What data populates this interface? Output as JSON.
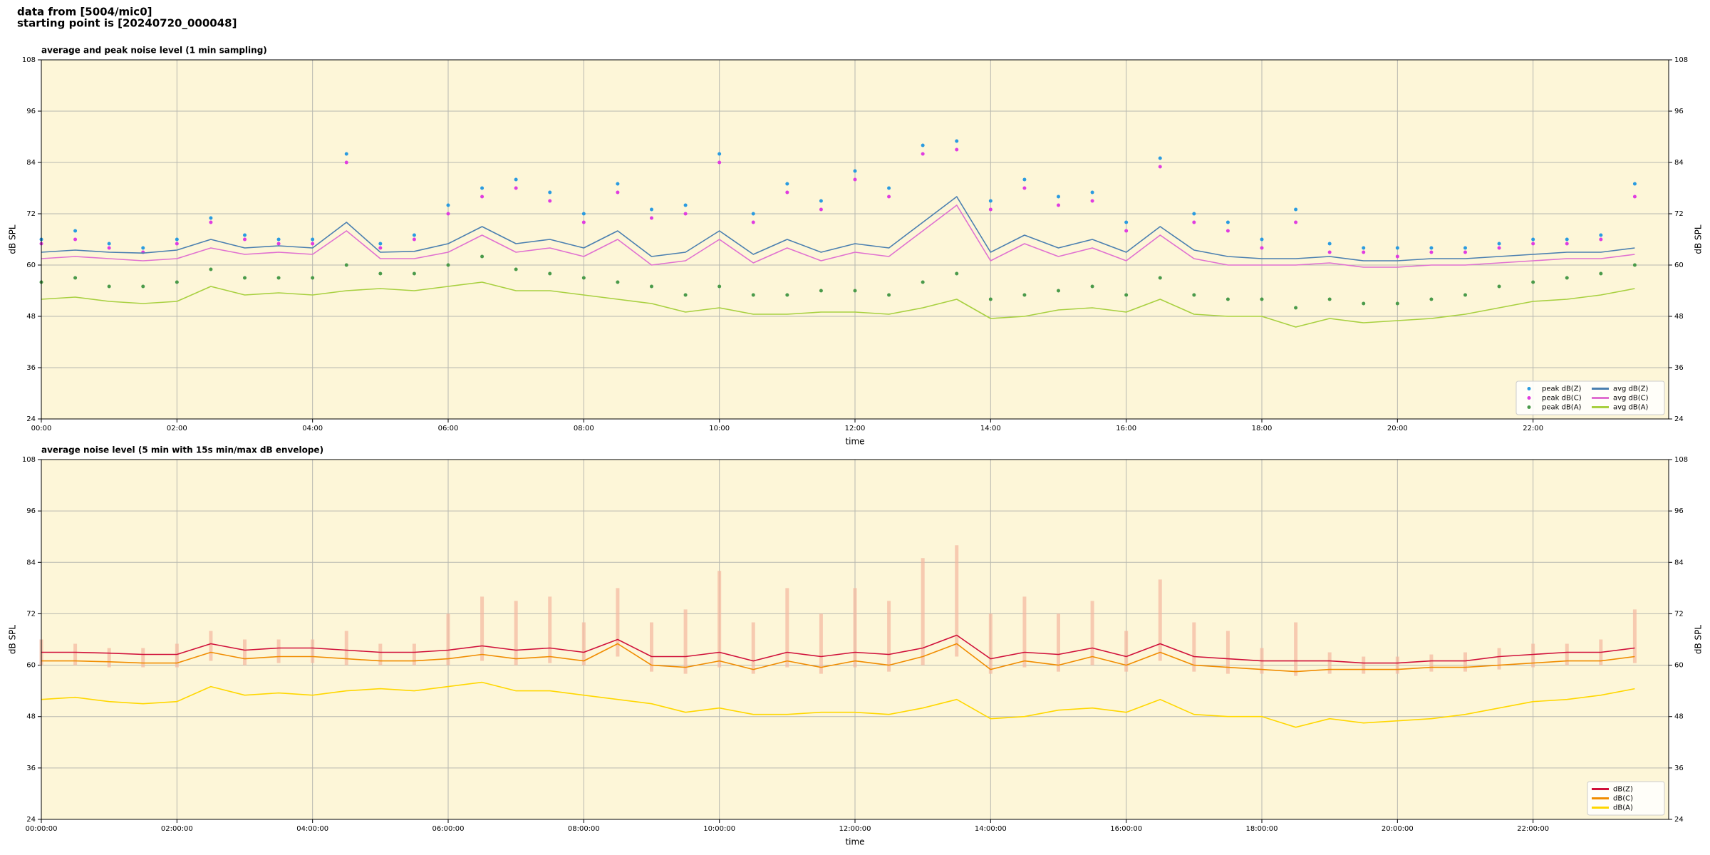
{
  "header": {
    "lines": [
      "data from [5004/mic0]",
      "starting point is [20240720_000048]"
    ]
  },
  "chart_data": [
    {
      "type": "line",
      "title": "average and peak noise level (1 min sampling)",
      "xlabel": "time",
      "ylabel": "dB SPL",
      "background": "#fdf6d8",
      "grid": true,
      "legend": "lower right",
      "legend_columns": 2,
      "xlim": [
        0,
        24
      ],
      "xticks": [
        {
          "value": 0,
          "label": "00:00"
        },
        {
          "value": 2,
          "label": "02:00"
        },
        {
          "value": 4,
          "label": "04:00"
        },
        {
          "value": 6,
          "label": "06:00"
        },
        {
          "value": 8,
          "label": "08:00"
        },
        {
          "value": 10,
          "label": "10:00"
        },
        {
          "value": 12,
          "label": "12:00"
        },
        {
          "value": 14,
          "label": "14:00"
        },
        {
          "value": 16,
          "label": "16:00"
        },
        {
          "value": 18,
          "label": "18:00"
        },
        {
          "value": 20,
          "label": "20:00"
        },
        {
          "value": 22,
          "label": "22:00"
        }
      ],
      "ylim": [
        24,
        108
      ],
      "yticks": [
        24,
        36,
        48,
        60,
        72,
        84,
        96,
        108
      ],
      "x": [
        0,
        0.5,
        1,
        1.5,
        2,
        2.5,
        3,
        3.5,
        4,
        4.5,
        5,
        5.5,
        6,
        6.5,
        7,
        7.5,
        8,
        8.5,
        9,
        9.5,
        10,
        10.5,
        11,
        11.5,
        12,
        12.5,
        13,
        13.5,
        14,
        14.5,
        15,
        15.5,
        16,
        16.5,
        17,
        17.5,
        18,
        18.5,
        19,
        19.5,
        20,
        20.5,
        21,
        21.5,
        22,
        22.5,
        23,
        23.5
      ],
      "series": [
        {
          "name": "peak dB(Z)",
          "color": "#2a9be0",
          "marker": "dot",
          "values": [
            66,
            68,
            65,
            64,
            66,
            71,
            67,
            66,
            66,
            86,
            65,
            67,
            74,
            78,
            80,
            77,
            72,
            79,
            73,
            74,
            86,
            72,
            79,
            75,
            82,
            78,
            88,
            89,
            75,
            80,
            76,
            77,
            70,
            85,
            72,
            70,
            66,
            73,
            65,
            64,
            64,
            64,
            64,
            65,
            66,
            66,
            67,
            79
          ]
        },
        {
          "name": "peak dB(C)",
          "color": "#e03ce0",
          "marker": "dot",
          "values": [
            65,
            66,
            64,
            63,
            65,
            70,
            66,
            65,
            65,
            84,
            64,
            66,
            72,
            76,
            78,
            75,
            70,
            77,
            71,
            72,
            84,
            70,
            77,
            73,
            80,
            76,
            86,
            87,
            73,
            78,
            74,
            75,
            68,
            83,
            70,
            68,
            64,
            70,
            63,
            63,
            62,
            63,
            63,
            64,
            65,
            65,
            66,
            76
          ]
        },
        {
          "name": "peak dB(A)",
          "color": "#4a9a4a",
          "marker": "dot",
          "values": [
            56,
            57,
            55,
            55,
            56,
            59,
            57,
            57,
            57,
            60,
            58,
            58,
            60,
            62,
            59,
            58,
            57,
            56,
            55,
            53,
            55,
            53,
            53,
            54,
            54,
            53,
            56,
            58,
            52,
            53,
            54,
            55,
            53,
            57,
            53,
            52,
            52,
            50,
            52,
            51,
            51,
            52,
            53,
            55,
            56,
            57,
            58,
            60
          ]
        },
        {
          "name": "avg dB(Z)",
          "color": "#4a7fb0",
          "values": [
            63,
            63.5,
            63,
            62.8,
            63.5,
            66,
            64,
            64.5,
            64,
            70,
            63,
            63.2,
            65,
            69,
            65,
            66,
            64,
            68,
            62,
            63,
            68,
            62.5,
            66,
            63,
            65,
            64,
            70,
            76,
            63,
            67,
            64,
            66,
            63,
            69,
            63.5,
            62,
            61.5,
            61.5,
            62,
            61,
            61,
            61.5,
            61.5,
            62,
            62.5,
            63,
            63,
            64
          ]
        },
        {
          "name": "avg dB(C)",
          "color": "#e070d0",
          "values": [
            61.5,
            62,
            61.5,
            61,
            61.5,
            64,
            62.5,
            63,
            62.5,
            68,
            61.5,
            61.5,
            63,
            67,
            63,
            64,
            62,
            66,
            60,
            61,
            66,
            60.5,
            64,
            61,
            63,
            62,
            68,
            74,
            61,
            65,
            62,
            64,
            61,
            67,
            61.5,
            60,
            60,
            60,
            60.5,
            59.5,
            59.5,
            60,
            60,
            60.5,
            61,
            61.5,
            61.5,
            62.5
          ]
        },
        {
          "name": "avg dB(A)",
          "color": "#a8d040",
          "values": [
            52,
            52.5,
            51.5,
            51,
            51.5,
            55,
            53,
            53.5,
            53,
            54,
            54.5,
            54,
            55,
            56,
            54,
            54,
            53,
            52,
            51,
            49,
            50,
            48.5,
            48.5,
            49,
            49,
            48.5,
            50,
            52,
            47.5,
            48,
            49.5,
            50,
            49,
            52,
            48.5,
            48,
            48,
            45.5,
            47.5,
            46.5,
            47,
            47.5,
            48.5,
            50,
            51.5,
            52,
            53,
            54.5
          ]
        }
      ]
    },
    {
      "type": "line",
      "title": "average noise level (5 min with 15s min/max dB envelope)",
      "xlabel": "time",
      "ylabel": "dB SPL",
      "background": "#fdf6d8",
      "grid": true,
      "legend": "lower right",
      "legend_columns": 1,
      "xlim": [
        0,
        24
      ],
      "xticks": [
        {
          "value": 0,
          "label": "00:00:00"
        },
        {
          "value": 2,
          "label": "02:00:00"
        },
        {
          "value": 4,
          "label": "04:00:00"
        },
        {
          "value": 6,
          "label": "06:00:00"
        },
        {
          "value": 8,
          "label": "08:00:00"
        },
        {
          "value": 10,
          "label": "10:00:00"
        },
        {
          "value": 12,
          "label": "12:00:00"
        },
        {
          "value": 14,
          "label": "14:00:00"
        },
        {
          "value": 16,
          "label": "16:00:00"
        },
        {
          "value": 18,
          "label": "18:00:00"
        },
        {
          "value": 20,
          "label": "20:00:00"
        },
        {
          "value": 22,
          "label": "22:00:00"
        }
      ],
      "ylim": [
        24,
        108
      ],
      "yticks": [
        24,
        36,
        48,
        60,
        72,
        84,
        96,
        108
      ],
      "x": [
        0,
        0.5,
        1,
        1.5,
        2,
        2.5,
        3,
        3.5,
        4,
        4.5,
        5,
        5.5,
        6,
        6.5,
        7,
        7.5,
        8,
        8.5,
        9,
        9.5,
        10,
        10.5,
        11,
        11.5,
        12,
        12.5,
        13,
        13.5,
        14,
        14.5,
        15,
        15.5,
        16,
        16.5,
        17,
        17.5,
        18,
        18.5,
        19,
        19.5,
        20,
        20.5,
        21,
        21.5,
        22,
        22.5,
        23,
        23.5
      ],
      "envelope": {
        "color": "#f4b8a0",
        "upper": [
          66,
          65,
          64,
          64,
          65,
          68,
          66,
          66,
          66,
          68,
          65,
          65,
          72,
          76,
          75,
          76,
          70,
          78,
          70,
          73,
          82,
          70,
          78,
          72,
          78,
          75,
          85,
          88,
          72,
          76,
          72,
          75,
          68,
          80,
          70,
          68,
          64,
          70,
          63,
          62,
          62,
          62.5,
          63,
          64,
          65,
          65,
          66,
          73
        ],
        "lower": [
          60,
          60,
          59.5,
          59.5,
          59.5,
          61,
          60,
          60.5,
          60.5,
          60,
          60,
          60,
          60,
          61,
          60,
          60.5,
          60,
          62,
          58.5,
          58,
          59.5,
          58,
          59.5,
          58,
          59.5,
          58.5,
          60,
          62,
          58,
          59.5,
          58.5,
          60,
          58.5,
          61,
          58.5,
          58,
          58,
          57.5,
          58,
          58,
          58,
          58.5,
          58.5,
          59,
          59.5,
          60,
          60,
          60.5
        ]
      },
      "series": [
        {
          "name": "dB(Z)",
          "color": "#d0103a",
          "values": [
            63,
            63,
            62.8,
            62.5,
            62.5,
            65,
            63.5,
            64,
            64,
            63.5,
            63,
            63,
            63.5,
            64.5,
            63.5,
            64,
            63,
            66,
            62,
            62,
            63,
            61,
            63,
            62,
            63,
            62.5,
            64,
            67,
            61.5,
            63,
            62.5,
            64,
            62,
            65,
            62,
            61.5,
            61,
            61,
            61,
            60.5,
            60.5,
            61,
            61,
            62,
            62.5,
            63,
            63,
            64
          ]
        },
        {
          "name": "dB(C)",
          "color": "#f08c00",
          "values": [
            61,
            61,
            60.8,
            60.5,
            60.5,
            63,
            61.5,
            62,
            62,
            61.5,
            61,
            61,
            61.5,
            62.5,
            61.5,
            62,
            61,
            65,
            60,
            59.5,
            61,
            59,
            61,
            59.5,
            61,
            60,
            62,
            65,
            59,
            61,
            60,
            62,
            60,
            63,
            60,
            59.5,
            59,
            58.5,
            59,
            59,
            59,
            59.5,
            59.5,
            60,
            60.5,
            61,
            61,
            62
          ]
        },
        {
          "name": "dB(A)",
          "color": "#ffd700",
          "values": [
            52,
            52.5,
            51.5,
            51,
            51.5,
            55,
            53,
            53.5,
            53,
            54,
            54.5,
            54,
            55,
            56,
            54,
            54,
            53,
            52,
            51,
            49,
            50,
            48.5,
            48.5,
            49,
            49,
            48.5,
            50,
            52,
            47.5,
            48,
            49.5,
            50,
            49,
            52,
            48.5,
            48,
            48,
            45.5,
            47.5,
            46.5,
            47,
            47.5,
            48.5,
            50,
            51.5,
            52,
            53,
            54.5
          ]
        }
      ]
    }
  ]
}
